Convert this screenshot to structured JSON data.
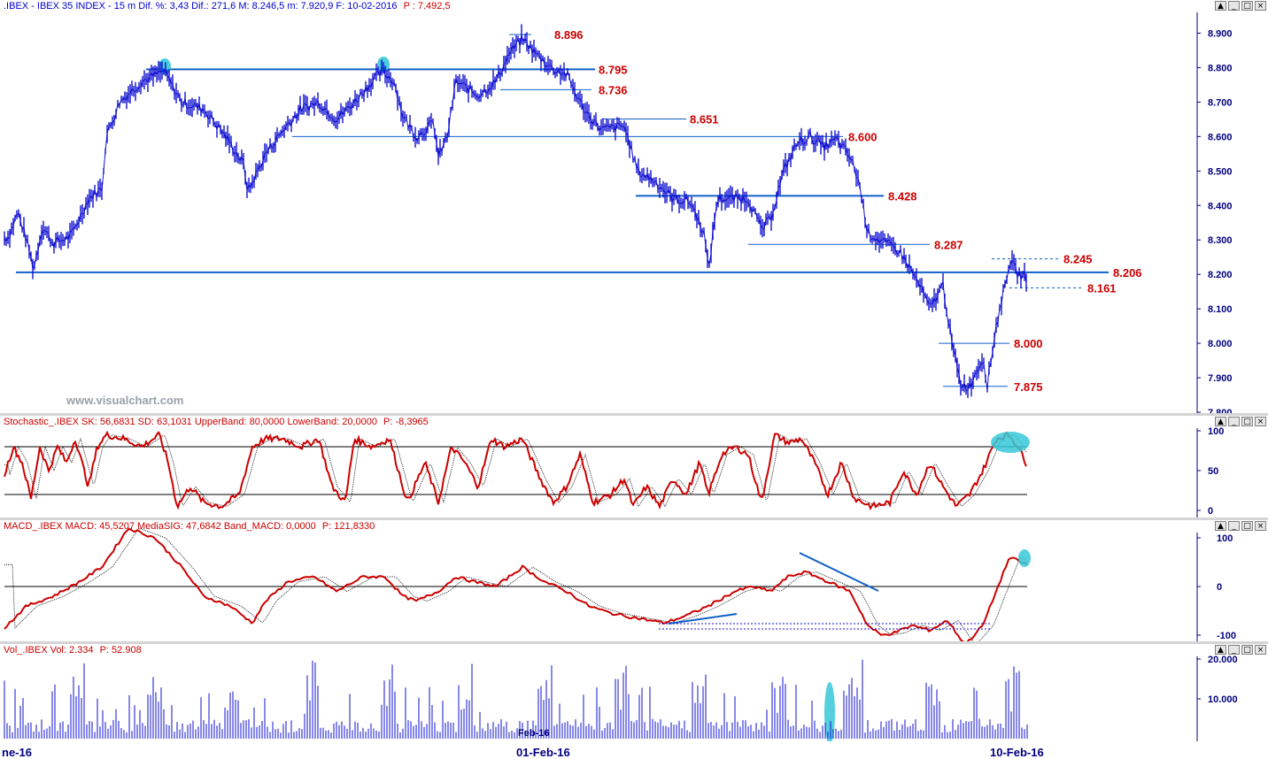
{
  "price_pane": {
    "header": ".IBEX - IBEX 35 INDEX -  15 m  Dif. %: 3,43  Dif.: 271,6  M: 8.246,5  m: 7.920,9  F: 10-02-2016",
    "header_p": "P : 7.492,5"
  },
  "stoch_pane": {
    "header": "Stochastic_.IBEX SK: 56,6831  SD: 63,1031  UpperBand: 80,0000  LowerBand: 20,0000",
    "header_p": "P: -8,3965"
  },
  "macd_pane": {
    "header": "MACD_.IBEX MACD: 45,5207  MediaSIG: 47,6842  Band_MACD: 0,0000",
    "header_p": "P: 121,8330"
  },
  "vol_pane": {
    "header": "Vol_.IBEX Vol: 2.334",
    "header_p": "P: 52.908"
  },
  "watermark": "www.visualchart.com",
  "window_buttons": [
    "▲",
    "_",
    "□",
    "×"
  ],
  "x_labels": {
    "left": "ne-16",
    "mid": "01-Feb-16",
    "right": "10-Feb-16",
    "vol_mid": "Feb-16"
  },
  "chart_data": {
    "type": "line",
    "title": ".IBEX - IBEX 35 INDEX - 15 m",
    "price_axis": {
      "ylim": [
        7800,
        8950
      ],
      "ticks": [
        "8.900",
        "8.800",
        "8.700",
        "8.600",
        "8.500",
        "8.400",
        "8.300",
        "8.200",
        "8.100",
        "8.000",
        "7.900",
        "7.800"
      ],
      "tick_values": [
        8900,
        8800,
        8700,
        8600,
        8500,
        8400,
        8300,
        8200,
        8100,
        8000,
        7900,
        7800
      ]
    },
    "levels": [
      {
        "value": 8896,
        "label": "8.896"
      },
      {
        "value": 8795,
        "label": "8.795"
      },
      {
        "value": 8736,
        "label": "8.736"
      },
      {
        "value": 8651,
        "label": "8.651"
      },
      {
        "value": 8600,
        "label": "8.600"
      },
      {
        "value": 8428,
        "label": "8.428"
      },
      {
        "value": 8287,
        "label": "8.287"
      },
      {
        "value": 8245,
        "label": "8.245"
      },
      {
        "value": 8206,
        "label": "8.206"
      },
      {
        "value": 8161,
        "label": "8.161"
      },
      {
        "value": 8000,
        "label": "8.000"
      },
      {
        "value": 7875,
        "label": "7.875"
      }
    ],
    "stoch_axis": {
      "ylim": [
        0,
        100
      ],
      "ticks": [
        "100",
        "50",
        "0"
      ],
      "bands": [
        80,
        20
      ]
    },
    "macd_axis": {
      "ticks": [
        "100",
        "0",
        "-100"
      ]
    },
    "vol_axis": {
      "ticks": [
        "20.000",
        "10.000"
      ]
    },
    "price_path": [
      [
        0,
        8300
      ],
      [
        10,
        8310
      ],
      [
        20,
        8380
      ],
      [
        30,
        8300
      ],
      [
        38,
        8215
      ],
      [
        48,
        8340
      ],
      [
        60,
        8290
      ],
      [
        80,
        8310
      ],
      [
        100,
        8420
      ],
      [
        115,
        8450
      ],
      [
        120,
        8600
      ],
      [
        135,
        8700
      ],
      [
        160,
        8760
      ],
      [
        185,
        8790
      ],
      [
        205,
        8700
      ],
      [
        230,
        8680
      ],
      [
        255,
        8600
      ],
      [
        275,
        8520
      ],
      [
        280,
        8440
      ],
      [
        300,
        8550
      ],
      [
        320,
        8620
      ],
      [
        340,
        8680
      ],
      [
        360,
        8700
      ],
      [
        380,
        8650
      ],
      [
        400,
        8700
      ],
      [
        420,
        8760
      ],
      [
        432,
        8790
      ],
      [
        445,
        8760
      ],
      [
        455,
        8660
      ],
      [
        470,
        8600
      ],
      [
        490,
        8640
      ],
      [
        495,
        8540
      ],
      [
        505,
        8600
      ],
      [
        515,
        8760
      ],
      [
        540,
        8720
      ],
      [
        560,
        8760
      ],
      [
        575,
        8840
      ],
      [
        590,
        8885
      ],
      [
        605,
        8840
      ],
      [
        625,
        8795
      ],
      [
        640,
        8780
      ],
      [
        655,
        8700
      ],
      [
        665,
        8660
      ],
      [
        680,
        8620
      ],
      [
        705,
        8630
      ],
      [
        720,
        8500
      ],
      [
        740,
        8470
      ],
      [
        760,
        8420
      ],
      [
        780,
        8410
      ],
      [
        795,
        8320
      ],
      [
        800,
        8210
      ],
      [
        810,
        8420
      ],
      [
        825,
        8420
      ],
      [
        845,
        8420
      ],
      [
        860,
        8330
      ],
      [
        870,
        8360
      ],
      [
        885,
        8500
      ],
      [
        900,
        8580
      ],
      [
        915,
        8600
      ],
      [
        930,
        8570
      ],
      [
        945,
        8590
      ],
      [
        960,
        8540
      ],
      [
        970,
        8470
      ],
      [
        980,
        8320
      ],
      [
        1000,
        8290
      ],
      [
        1015,
        8270
      ],
      [
        1025,
        8230
      ],
      [
        1040,
        8160
      ],
      [
        1050,
        8100
      ],
      [
        1065,
        8170
      ],
      [
        1075,
        8000
      ],
      [
        1085,
        7880
      ],
      [
        1095,
        7875
      ],
      [
        1110,
        7960
      ],
      [
        1115,
        7880
      ],
      [
        1125,
        8050
      ],
      [
        1135,
        8170
      ],
      [
        1140,
        8240
      ],
      [
        1150,
        8200
      ],
      [
        1160,
        8190
      ]
    ],
    "stoch_path": [
      [
        5,
        45
      ],
      [
        15,
        80
      ],
      [
        25,
        60
      ],
      [
        35,
        15
      ],
      [
        45,
        80
      ],
      [
        55,
        50
      ],
      [
        65,
        80
      ],
      [
        75,
        60
      ],
      [
        85,
        90
      ],
      [
        100,
        30
      ],
      [
        110,
        80
      ],
      [
        120,
        95
      ],
      [
        140,
        90
      ],
      [
        160,
        80
      ],
      [
        180,
        95
      ],
      [
        190,
        60
      ],
      [
        200,
        5
      ],
      [
        215,
        30
      ],
      [
        230,
        10
      ],
      [
        250,
        5
      ],
      [
        270,
        20
      ],
      [
        285,
        80
      ],
      [
        300,
        90
      ],
      [
        320,
        90
      ],
      [
        340,
        80
      ],
      [
        360,
        90
      ],
      [
        375,
        30
      ],
      [
        390,
        10
      ],
      [
        400,
        90
      ],
      [
        420,
        80
      ],
      [
        440,
        90
      ],
      [
        460,
        10
      ],
      [
        480,
        60
      ],
      [
        495,
        10
      ],
      [
        510,
        80
      ],
      [
        525,
        60
      ],
      [
        540,
        30
      ],
      [
        555,
        90
      ],
      [
        570,
        80
      ],
      [
        590,
        90
      ],
      [
        610,
        40
      ],
      [
        625,
        10
      ],
      [
        640,
        30
      ],
      [
        655,
        70
      ],
      [
        670,
        10
      ],
      [
        690,
        20
      ],
      [
        705,
        40
      ],
      [
        715,
        5
      ],
      [
        730,
        30
      ],
      [
        745,
        5
      ],
      [
        760,
        40
      ],
      [
        775,
        20
      ],
      [
        790,
        60
      ],
      [
        800,
        20
      ],
      [
        815,
        70
      ],
      [
        830,
        80
      ],
      [
        845,
        70
      ],
      [
        860,
        10
      ],
      [
        875,
        95
      ],
      [
        890,
        85
      ],
      [
        905,
        90
      ],
      [
        920,
        60
      ],
      [
        935,
        20
      ],
      [
        950,
        60
      ],
      [
        965,
        15
      ],
      [
        985,
        5
      ],
      [
        1005,
        10
      ],
      [
        1020,
        50
      ],
      [
        1035,
        20
      ],
      [
        1050,
        60
      ],
      [
        1065,
        30
      ],
      [
        1080,
        5
      ],
      [
        1095,
        20
      ],
      [
        1110,
        50
      ],
      [
        1125,
        90
      ],
      [
        1140,
        95
      ],
      [
        1150,
        80
      ],
      [
        1160,
        57
      ]
    ],
    "macd_path": [
      [
        5,
        -85
      ],
      [
        30,
        -40
      ],
      [
        60,
        -20
      ],
      [
        90,
        10
      ],
      [
        115,
        40
      ],
      [
        145,
        120
      ],
      [
        175,
        100
      ],
      [
        205,
        40
      ],
      [
        230,
        -20
      ],
      [
        260,
        -40
      ],
      [
        285,
        -75
      ],
      [
        300,
        -30
      ],
      [
        325,
        10
      ],
      [
        355,
        20
      ],
      [
        380,
        -10
      ],
      [
        410,
        20
      ],
      [
        435,
        20
      ],
      [
        455,
        -20
      ],
      [
        470,
        -30
      ],
      [
        495,
        -10
      ],
      [
        515,
        20
      ],
      [
        535,
        10
      ],
      [
        560,
        0
      ],
      [
        590,
        40
      ],
      [
        615,
        10
      ],
      [
        640,
        -10
      ],
      [
        665,
        -40
      ],
      [
        690,
        -55
      ],
      [
        720,
        -65
      ],
      [
        750,
        -75
      ],
      [
        775,
        -60
      ],
      [
        800,
        -40
      ],
      [
        830,
        -10
      ],
      [
        850,
        0
      ],
      [
        870,
        -10
      ],
      [
        890,
        20
      ],
      [
        910,
        30
      ],
      [
        935,
        10
      ],
      [
        960,
        -10
      ],
      [
        980,
        -80
      ],
      [
        995,
        -100
      ],
      [
        1010,
        -95
      ],
      [
        1030,
        -80
      ],
      [
        1050,
        -90
      ],
      [
        1070,
        -70
      ],
      [
        1090,
        -120
      ],
      [
        1110,
        -80
      ],
      [
        1125,
        -10
      ],
      [
        1140,
        60
      ],
      [
        1160,
        45
      ]
    ]
  }
}
